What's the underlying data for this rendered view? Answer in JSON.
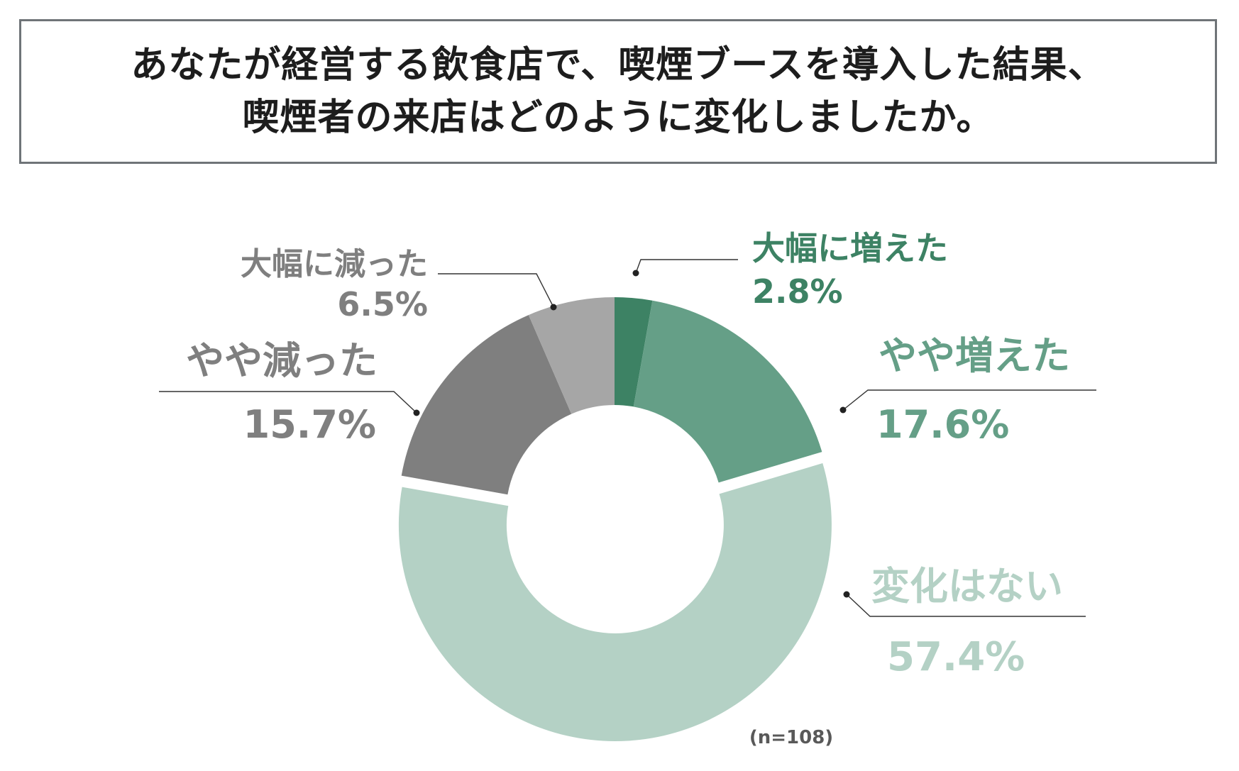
{
  "title": {
    "line1": "あなたが経営する飲食店で、喫煙ブースを導入した結果、",
    "line2": "喫煙者の来店はどのように変化しましたか。"
  },
  "colors": {
    "title_border": "#6f7478",
    "title_text": "#1d1d1d",
    "leader_line": "#333333"
  },
  "chart_data": {
    "type": "pie",
    "variant": "donut",
    "title": "あなたが経営する飲食店で、喫煙ブースを導入した結果、喫煙者の来店はどのように変化しましたか。",
    "start": "12 o'clock, clockwise",
    "unit": "%",
    "sample_note": "(n=108)",
    "slices": [
      {
        "label": "大幅に増えた",
        "value": 2.8,
        "value_text": "2.8%",
        "color": "#3d8264",
        "label_color": "#3d8264",
        "exploded": false
      },
      {
        "label": "やや増えた",
        "value": 17.6,
        "value_text": "17.6%",
        "color": "#659f87",
        "label_color": "#659f87",
        "exploded": false
      },
      {
        "label": "変化はない",
        "value": 57.4,
        "value_text": "57.4%",
        "color": "#b4d1c5",
        "label_color": "#b4d1c5",
        "exploded": true
      },
      {
        "label": "やや減った",
        "value": 15.7,
        "value_text": "15.7%",
        "color": "#7f7f7f",
        "label_color": "#7f7f7f",
        "exploded": false
      },
      {
        "label": "大幅に減った",
        "value": 6.5,
        "value_text": "6.5%",
        "color": "#a6a6a6",
        "label_color": "#7f7f7f",
        "exploded": false
      }
    ]
  }
}
